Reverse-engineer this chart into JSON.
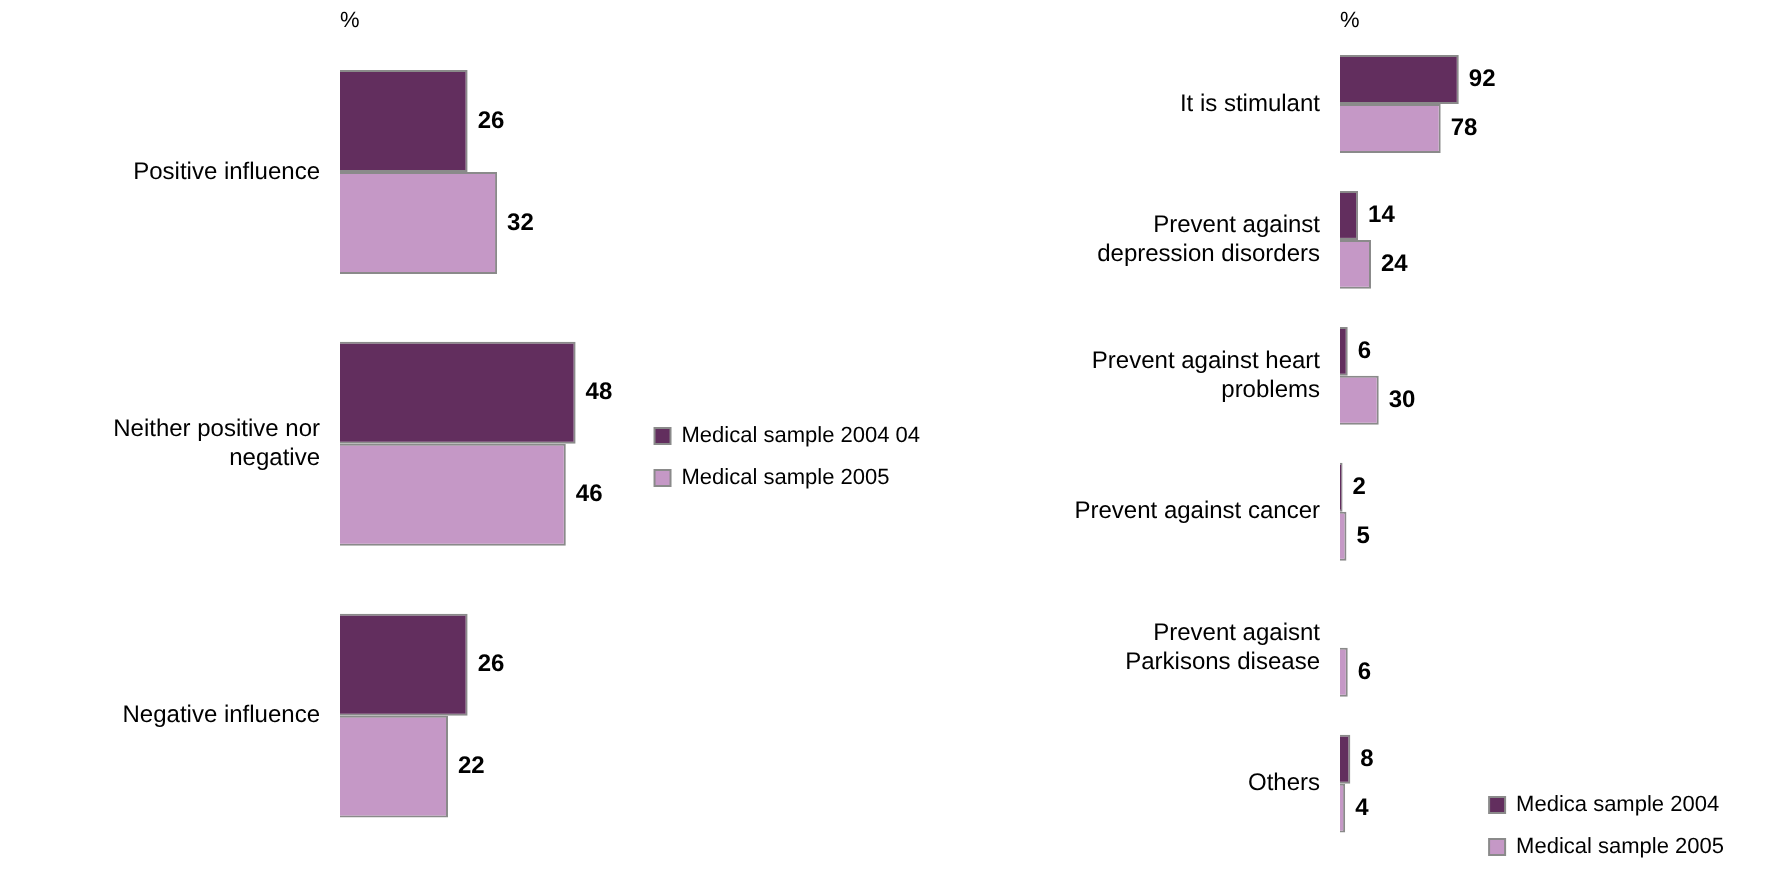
{
  "chart_data": [
    {
      "type": "bar",
      "orientation": "horizontal",
      "xlabel": "%",
      "data_labels": true,
      "legend": "right",
      "categories": [
        "Positive influence",
        "Neither positive nor negative",
        "Negative influence"
      ],
      "series": [
        {
          "name": "Medical sample 2004 04",
          "color": "#622e5e",
          "values": [
            26,
            48,
            26
          ]
        },
        {
          "name": "Medical sample 2005",
          "color": "#c598c6",
          "values": [
            32,
            46,
            22
          ]
        }
      ]
    },
    {
      "type": "bar",
      "orientation": "horizontal",
      "xlabel": "%",
      "data_labels": true,
      "legend": "bottom right",
      "categories": [
        "It is stimulant",
        "Prevent against depression disorders",
        "Prevent against heart problems",
        "Prevent against cancer",
        "Prevent agaisnt Parkisons disease",
        "Others"
      ],
      "series": [
        {
          "name": "Medica sample 2004",
          "color": "#622e5e",
          "values": [
            92,
            14,
            6,
            2,
            null,
            8
          ]
        },
        {
          "name": "Medical sample 2005",
          "color": "#c598c6",
          "values": [
            78,
            24,
            30,
            5,
            6,
            4
          ]
        }
      ]
    }
  ]
}
